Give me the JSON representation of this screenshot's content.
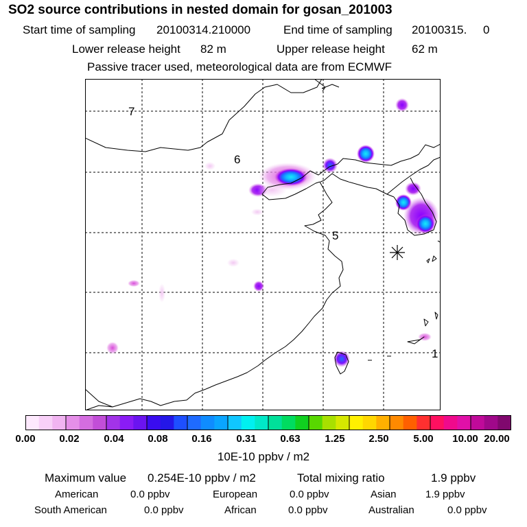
{
  "header": {
    "title": "SO2 source contributions in nested domain for gosan_201003",
    "start_label": "Start time of sampling",
    "start_value": "20100314.210000",
    "end_label": "End time of sampling",
    "end_value": "20100315.     0",
    "lower_label": "Lower release height",
    "lower_value": "82 m",
    "upper_label": "Upper release height",
    "upper_value": "62 m",
    "note": "Passive tracer used, meteorological data are from ECMWF"
  },
  "map": {
    "grid_labels": [
      "7",
      "6",
      "5",
      "1"
    ],
    "source_marker": "asterisk-marker",
    "tracer_colors": {
      "light": "#f2c6f2",
      "mid": "#d84ad8",
      "dark": "#8a00ff",
      "blue": "#1f6bff",
      "cyan": "#18d8f0"
    }
  },
  "colorbar": {
    "colors": [
      "#fde9fd",
      "#f8d0f8",
      "#f1b4f1",
      "#e58fe8",
      "#d46de0",
      "#c24ed8",
      "#a233e8",
      "#8a1cf5",
      "#6b14f0",
      "#3a0cf0",
      "#2417e8",
      "#1e4fff",
      "#1f6bff",
      "#0f8cff",
      "#0aa5ff",
      "#10c6ff",
      "#00f0f0",
      "#00e8c8",
      "#00e09a",
      "#00dc60",
      "#10d020",
      "#58d800",
      "#a8e000",
      "#d6e800",
      "#fff000",
      "#ffd700",
      "#ffb000",
      "#ff8a00",
      "#ff6000",
      "#ff3030",
      "#ff1060",
      "#f00a8c",
      "#e010a8",
      "#c00a9a",
      "#a0088a",
      "#80086e"
    ],
    "ticks": [
      "0.00",
      "0.02",
      "0.04",
      "0.08",
      "0.16",
      "0.31",
      "0.63",
      "1.25",
      "2.50",
      "5.00",
      "10.00",
      "20.00"
    ],
    "units": "10E-10 ppbv / m2"
  },
  "stats": {
    "max_label": "Maximum value",
    "max_value": "0.254E-10 ppbv / m2",
    "total_label": "Total mixing ratio",
    "total_value": "1.9 ppbv",
    "regions": [
      {
        "name": "American",
        "value": "0.0 ppbv"
      },
      {
        "name": "European",
        "value": "0.0 ppbv"
      },
      {
        "name": "Asian",
        "value": "1.9 ppbv"
      },
      {
        "name": "South American",
        "value": "0.0 ppbv"
      },
      {
        "name": "African",
        "value": "0.0 ppbv"
      },
      {
        "name": "Australian",
        "value": "0.0 ppbv"
      }
    ]
  }
}
